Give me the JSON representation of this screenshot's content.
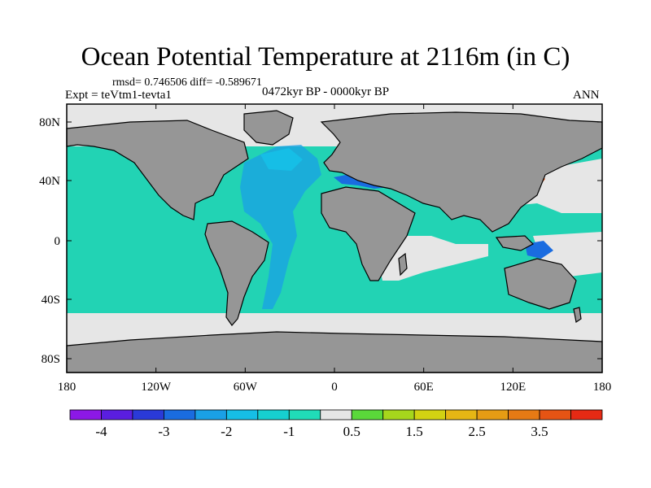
{
  "title": "Ocean Potential Temperature at 2116m (in C)",
  "stats": "rmsd= 0.746506 diff= -0.589671",
  "experiment": "Expt = teVtm1-tevta1",
  "period": "0472kyr BP - 0000kyr BP",
  "season": "ANN",
  "map": {
    "lon_ticks": [
      "180",
      "120W",
      "60W",
      "0",
      "60E",
      "120E",
      "180"
    ],
    "lat_ticks": [
      "80N",
      "40N",
      "0",
      "40S",
      "80S"
    ],
    "colors": {
      "land": "#969696",
      "ice": "#e6e6e6",
      "ocean_default": "#22d3b4",
      "frame": "#000000"
    }
  },
  "colorbar": {
    "colors": [
      "#8c18e6",
      "#5a1ee0",
      "#2a3ad8",
      "#1a6ce0",
      "#1aa0e6",
      "#16bee6",
      "#16d0d0",
      "#20dcb8",
      "#e6e6e6",
      "#5ad83a",
      "#a6d61c",
      "#d2d212",
      "#e6b614",
      "#e69c14",
      "#e67a14",
      "#e65414",
      "#e62a14"
    ],
    "labels": [
      "-4",
      "-3",
      "-2",
      "-1",
      "0.5",
      "1.5",
      "2.5",
      "3.5"
    ]
  }
}
